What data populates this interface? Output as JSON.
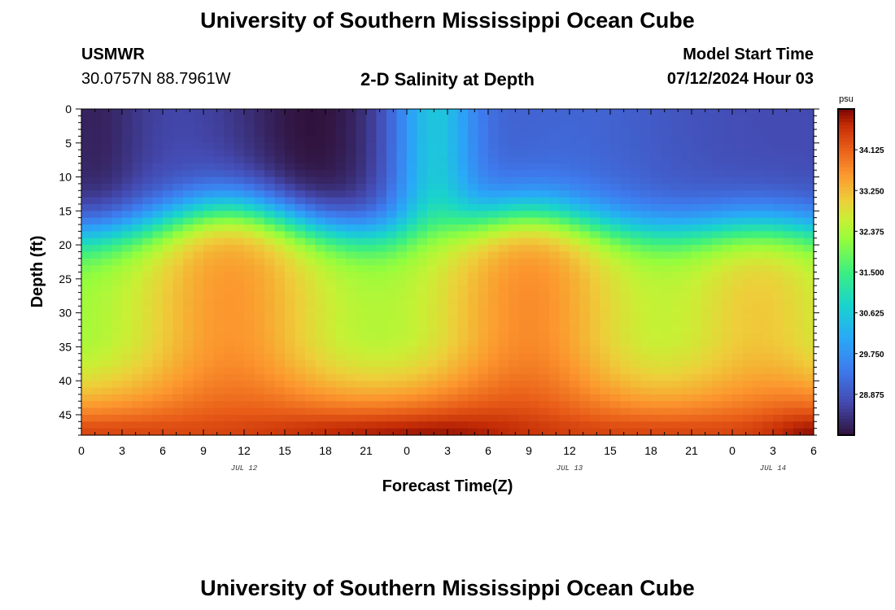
{
  "header": {
    "title": "University of Southern Mississippi Ocean Cube",
    "station": "USMWR",
    "coords": "30.0757N  88.7961W",
    "subtitle": "2-D Salinity at Depth",
    "model_label": "Model Start Time",
    "model_date": "07/12/2024 Hour 03"
  },
  "footer": {
    "title": "University of Southern Mississippi Ocean Cube"
  },
  "colors": {
    "background": "#ffffff",
    "axis": "#000000"
  },
  "chart_data": {
    "type": "heatmap",
    "title": "2-D Salinity at Depth",
    "xlabel": "Forecast Time(Z)",
    "ylabel": "Depth (ft)",
    "x_range_hours": [
      0,
      54
    ],
    "y_range_ft": [
      0,
      48
    ],
    "x_tick_labels": [
      "0",
      "3",
      "6",
      "9",
      "12",
      "15",
      "18",
      "21",
      "0",
      "3",
      "6",
      "9",
      "12",
      "15",
      "18",
      "21",
      "0",
      "3",
      "6"
    ],
    "y_tick_labels": [
      "0",
      "5",
      "10",
      "15",
      "20",
      "25",
      "30",
      "35",
      "40",
      "45"
    ],
    "date_labels": [
      {
        "text": "JUL 12",
        "hour": 12
      },
      {
        "text": "JUL 13",
        "hour": 36
      },
      {
        "text": "JUL 14",
        "hour": 51
      }
    ],
    "colorbar": {
      "unit": "psu",
      "min": 28.0,
      "max": 35.0,
      "tick_labels": [
        "34.125",
        "33.250",
        "32.375",
        "31.500",
        "30.625",
        "29.750",
        "28.875"
      ],
      "tick_values": [
        34.125,
        33.25,
        32.375,
        31.5,
        30.625,
        29.75,
        28.875
      ]
    },
    "grid": false,
    "colormap": "turbo",
    "field_description_points": [
      {
        "hour": 0,
        "depth": 5,
        "value": 28.2
      },
      {
        "hour": 18,
        "depth": 5,
        "value": 28.1
      },
      {
        "hour": 26,
        "depth": 5,
        "value": 30.3
      },
      {
        "hour": 45,
        "depth": 8,
        "value": 28.9
      },
      {
        "hour": 11,
        "depth": 25,
        "value": 32.9
      },
      {
        "hour": 33,
        "depth": 25,
        "value": 33.0
      },
      {
        "hour": 3,
        "depth": 25,
        "value": 32.0
      },
      {
        "hour": 27,
        "depth": 45,
        "value": 34.8
      },
      {
        "hour": 54,
        "depth": 47,
        "value": 34.9
      }
    ]
  }
}
